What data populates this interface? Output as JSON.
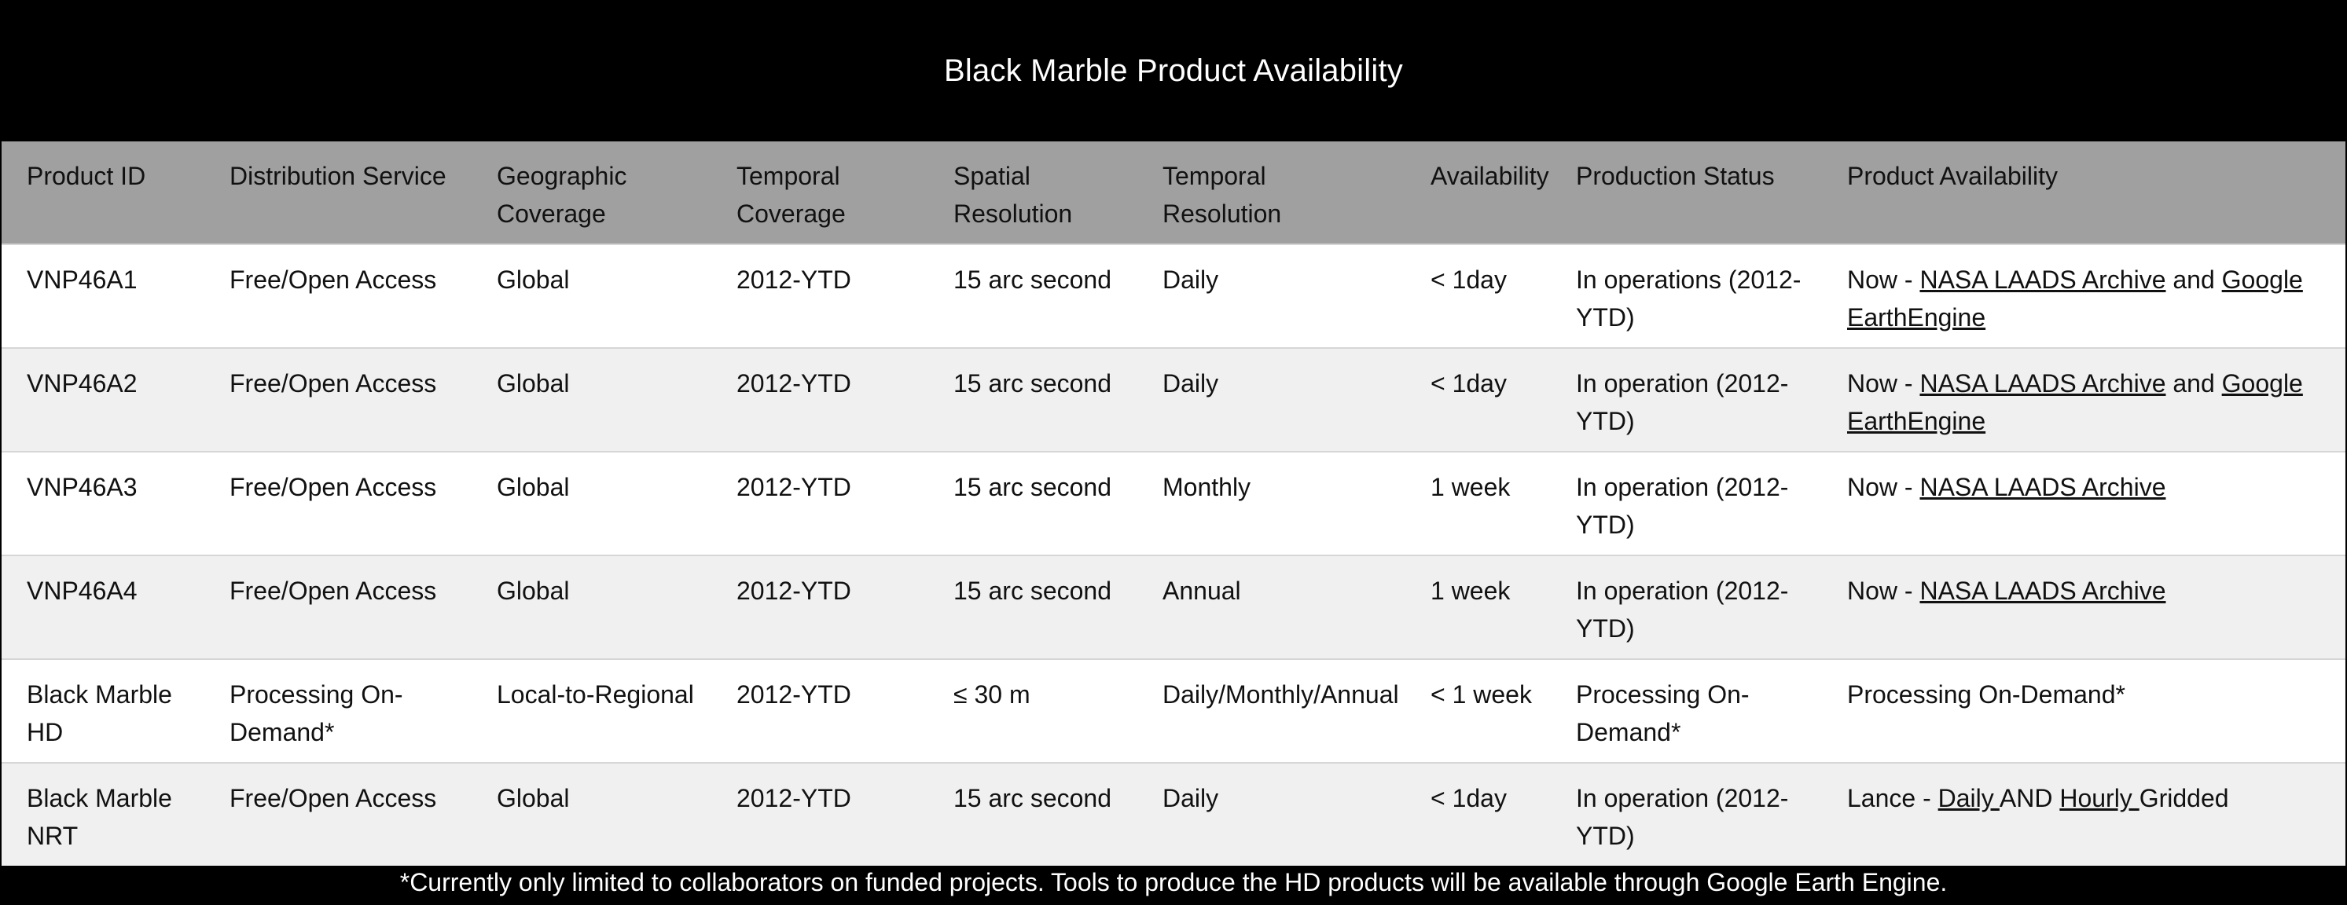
{
  "title": "Black Marble Product Availability",
  "headers": [
    "Product ID",
    "Distribution Service",
    "Geographic Coverage",
    "Temporal Coverage",
    "Spatial Resolution",
    "Temporal Resolution",
    "Availability",
    "Production Status",
    "Product Availability"
  ],
  "rows": [
    {
      "product_id": "VNP46A1",
      "distribution": "Free/Open Access",
      "geographic": "Global",
      "temporal_coverage": "2012-YTD",
      "spatial": "15 arc second",
      "temporal_resolution": "Daily",
      "availability": "< 1day",
      "status": "In operations (2012-YTD)",
      "product_availability": {
        "prefix": "Now - ",
        "link1": "NASA LAADS Archive",
        "middle": " and ",
        "link2": "Google EarthEngine"
      }
    },
    {
      "product_id": "VNP46A2",
      "distribution": "Free/Open Access",
      "geographic": "Global",
      "temporal_coverage": "2012-YTD",
      "spatial": "15 arc second",
      "temporal_resolution": "Daily",
      "availability": "< 1day",
      "status": "In operation (2012-YTD)",
      "product_availability": {
        "prefix": "Now - ",
        "link1": "NASA LAADS Archive",
        "middle": " and ",
        "link2": "Google EarthEngine"
      }
    },
    {
      "product_id": "VNP46A3",
      "distribution": "Free/Open Access",
      "geographic": "Global",
      "temporal_coverage": "2012-YTD",
      "spatial": "15 arc second",
      "temporal_resolution": "Monthly",
      "availability": "1 week",
      "status": "In operation (2012-YTD)",
      "product_availability": {
        "prefix": "Now - ",
        "link1": "NASA LAADS Archive"
      }
    },
    {
      "product_id": "VNP46A4",
      "distribution": "Free/Open Access",
      "geographic": "Global",
      "temporal_coverage": "2012-YTD",
      "spatial": "15 arc second",
      "temporal_resolution": "Annual",
      "availability": "1 week",
      "status": "In operation (2012-YTD)",
      "product_availability": {
        "prefix": "Now - ",
        "link1": "NASA LAADS Archive"
      }
    },
    {
      "product_id": "Black Marble HD",
      "distribution": "Processing On-Demand*",
      "geographic": "Local-to-Regional",
      "temporal_coverage": "2012-YTD",
      "spatial": "≤ 30 m",
      "temporal_resolution": "Daily/Monthly/Annual",
      "availability": "< 1 week",
      "status": "Processing On-Demand*",
      "product_availability": {
        "prefix": "Processing On-Demand*"
      }
    },
    {
      "product_id": "Black Marble NRT",
      "distribution": "Free/Open Access",
      "geographic": "Global",
      "temporal_coverage": "2012-YTD",
      "spatial": "15 arc second",
      "temporal_resolution": "Daily",
      "availability": "< 1day",
      "status": "In operation (2012-YTD)",
      "product_availability": {
        "prefix": "Lance - ",
        "link1": "Daily ",
        "middle": "AND ",
        "link2": "Hourly ",
        "suffix": "Gridded"
      }
    }
  ],
  "footnote": "*Currently only limited to collaborators on funded projects. Tools to produce the HD products will be available through Google Earth Engine."
}
